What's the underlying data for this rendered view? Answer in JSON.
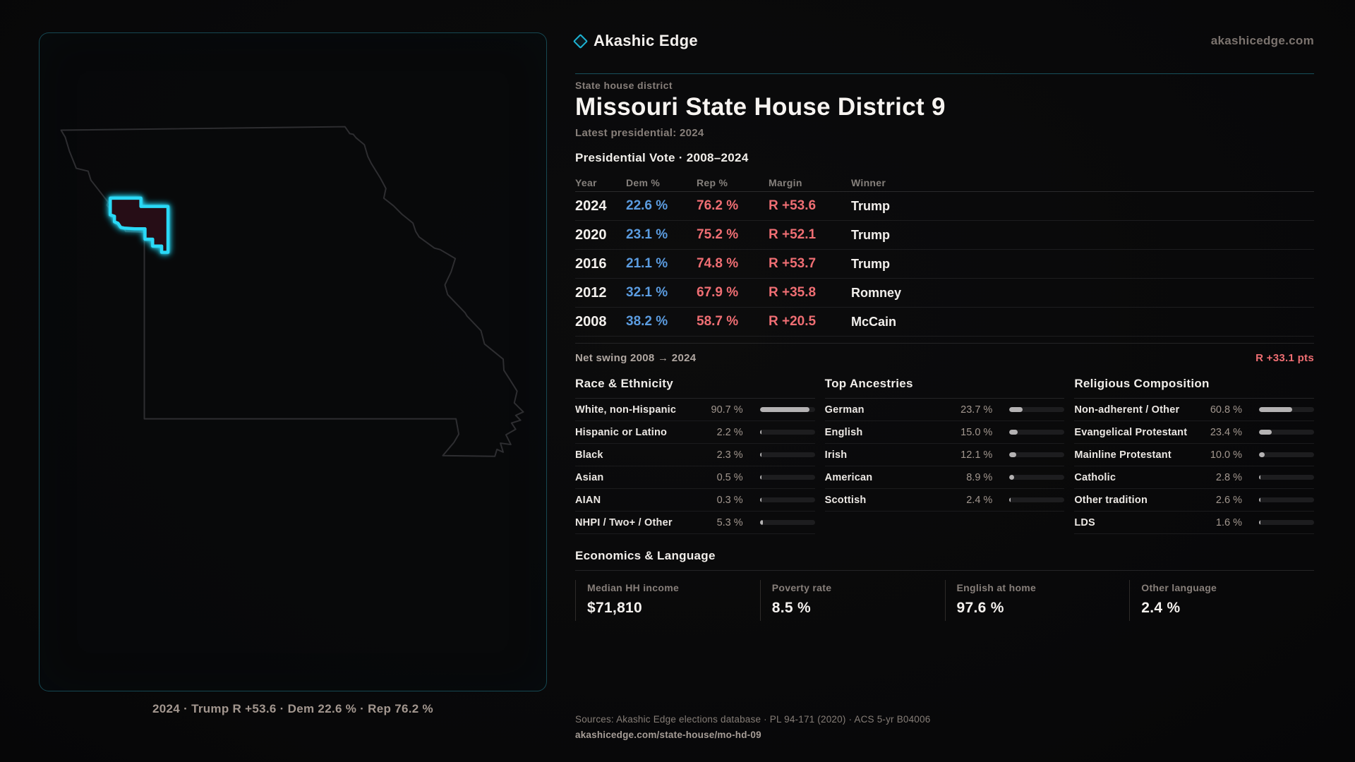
{
  "brand": {
    "logo_text": "Akashic Edge",
    "domain": "akashicedge.com"
  },
  "header": {
    "kicker": "State house district",
    "title": "Missouri State House District 9",
    "subtitle": "Latest presidential: 2024"
  },
  "vote_table": {
    "heading": "Presidential Vote · 2008–2024",
    "columns": [
      "Year",
      "Dem %",
      "Rep %",
      "Margin",
      "Winner"
    ],
    "rows": [
      {
        "year": "2024",
        "dem": "22.6 %",
        "rep": "76.2 %",
        "margin": "R +53.6",
        "winner": "Trump"
      },
      {
        "year": "2020",
        "dem": "23.1 %",
        "rep": "75.2 %",
        "margin": "R +52.1",
        "winner": "Trump"
      },
      {
        "year": "2016",
        "dem": "21.1 %",
        "rep": "74.8 %",
        "margin": "R +53.7",
        "winner": "Trump"
      },
      {
        "year": "2012",
        "dem": "32.1 %",
        "rep": "67.9 %",
        "margin": "R +35.8",
        "winner": "Romney"
      },
      {
        "year": "2008",
        "dem": "38.2 %",
        "rep": "58.7 %",
        "margin": "R +20.5",
        "winner": "McCain"
      }
    ]
  },
  "net_swing": {
    "label": "Net swing 2008 → 2024",
    "value": "R +33.1 pts"
  },
  "sections": {
    "race": {
      "title": "Race & Ethnicity",
      "rows": [
        {
          "label": "White, non-Hispanic",
          "value": "90.7 %",
          "pct": 90.7
        },
        {
          "label": "Hispanic or Latino",
          "value": "2.2 %",
          "pct": 2.2
        },
        {
          "label": "Black",
          "value": "2.3 %",
          "pct": 2.3
        },
        {
          "label": "Asian",
          "value": "0.5 %",
          "pct": 0.5
        },
        {
          "label": "AIAN",
          "value": "0.3 %",
          "pct": 0.3
        },
        {
          "label": "NHPI / Two+ / Other",
          "value": "5.3 %",
          "pct": 5.3
        }
      ]
    },
    "ancestries": {
      "title": "Top Ancestries",
      "rows": [
        {
          "label": "German",
          "value": "23.7 %",
          "pct": 23.7
        },
        {
          "label": "English",
          "value": "15.0 %",
          "pct": 15.0
        },
        {
          "label": "Irish",
          "value": "12.1 %",
          "pct": 12.1
        },
        {
          "label": "American",
          "value": "8.9 %",
          "pct": 8.9
        },
        {
          "label": "Scottish",
          "value": "2.4 %",
          "pct": 2.4
        }
      ]
    },
    "religion": {
      "title": "Religious Composition",
      "rows": [
        {
          "label": "Non-adherent / Other",
          "value": "60.8 %",
          "pct": 60.8
        },
        {
          "label": "Evangelical Protestant",
          "value": "23.4 %",
          "pct": 23.4
        },
        {
          "label": "Mainline Protestant",
          "value": "10.0 %",
          "pct": 10.0
        },
        {
          "label": "Catholic",
          "value": "2.8 %",
          "pct": 2.8
        },
        {
          "label": "Other tradition",
          "value": "2.6 %",
          "pct": 2.6
        },
        {
          "label": "LDS",
          "value": "1.6 %",
          "pct": 1.6
        }
      ]
    }
  },
  "economics": {
    "title": "Economics & Language",
    "stats": [
      {
        "label": "Median HH income",
        "value": "$71,810"
      },
      {
        "label": "Poverty rate",
        "value": "8.5 %"
      },
      {
        "label": "English at home",
        "value": "97.6 %"
      },
      {
        "label": "Other language",
        "value": "2.4 %"
      }
    ]
  },
  "map": {
    "caption": "2024 · Trump R +53.6 · Dem 22.6 % · Rep 76.2 %"
  },
  "footer": {
    "sources": "Sources: Akashic Edge elections database · PL 94-171 (2020) · ACS 5-yr B04006",
    "permalink": "akashicedge.com/state-house/mo-hd-09"
  },
  "colors": {
    "accent_cyan": "#2ad9f7",
    "dem_blue": "#5b9ce0",
    "rep_red": "#ef6e73",
    "bar_fill": "#b4b2b3",
    "district_fill": "#261013"
  }
}
